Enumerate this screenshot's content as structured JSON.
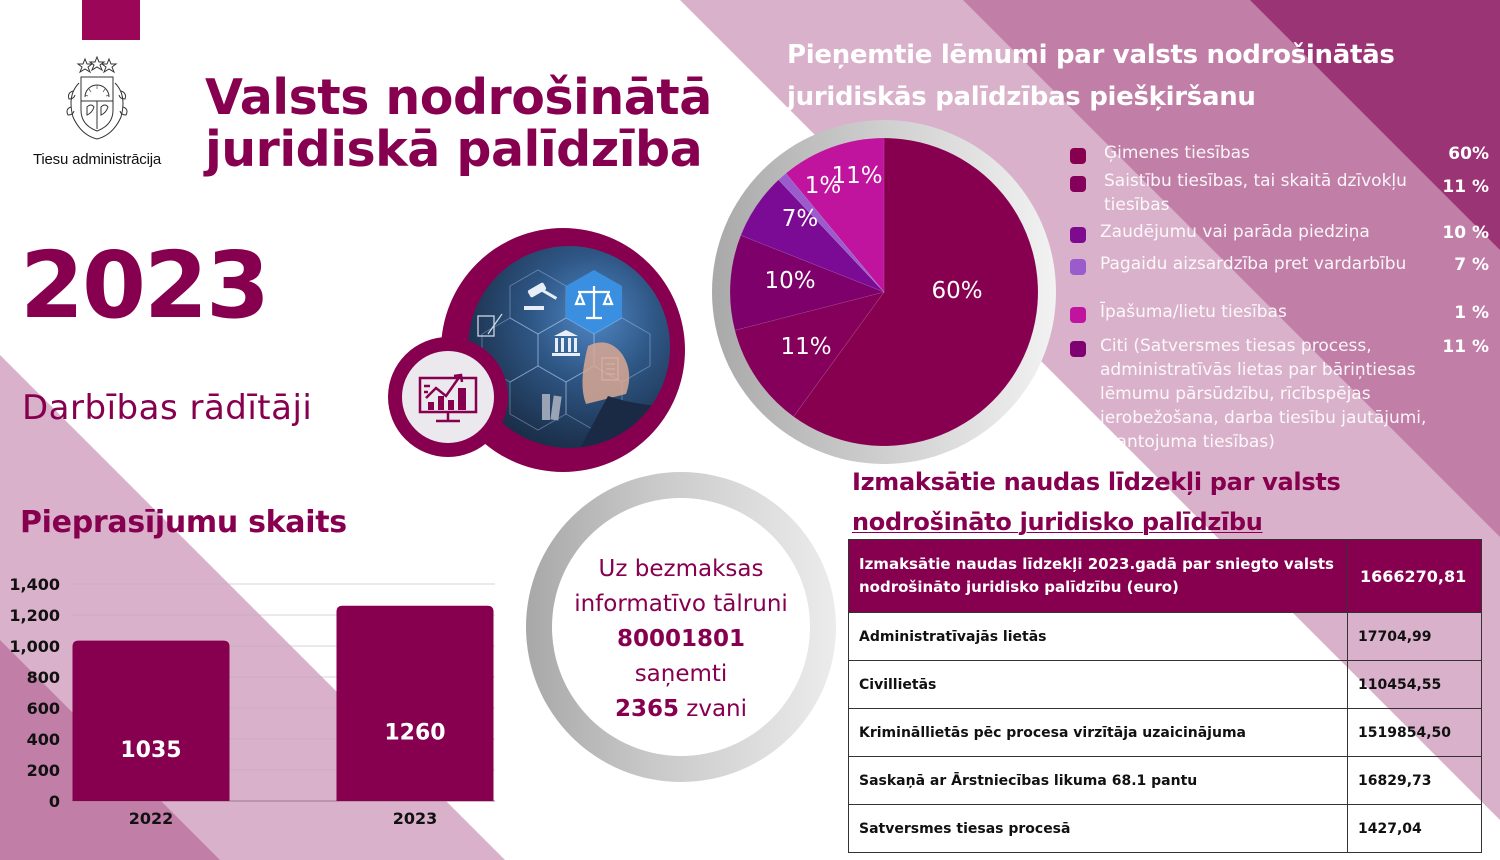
{
  "colors": {
    "brand": "#86004f",
    "band_light": "#d9b1ca",
    "band_medium": "#c17fa8",
    "band_dark": "#9b3474",
    "top_square": "#9b0658",
    "text_white": "#ffffff"
  },
  "header": {
    "organization": "Tiesu administrācija",
    "logo_icon": "latvian-coat-of-arms-icon",
    "title_line1": "Valsts nodrošinātā",
    "title_line2": "juridiskā palīdzība"
  },
  "hero": {
    "year": "2023",
    "subtitle": "Darbības rādītāji",
    "photo_icons": [
      "gavel-icon",
      "scales-of-justice-icon",
      "courthouse-icon",
      "document-signing-icon",
      "checklist-icon",
      "binders-icon"
    ],
    "badge_icon": "analytics-monitor-icon"
  },
  "decisions": {
    "title_line1": "Pieņemtie lēmumi par valsts nodrošinātās",
    "title_line2": "juridiskās palīdzības piešķiršanu",
    "legend": [
      {
        "label": "Ģimenes tiesības",
        "value": "60%",
        "color": "#86004f"
      },
      {
        "label": "Saistību tiesības, tai skaitā dzīvokļu tiesības",
        "value": "11 %",
        "color": "#84005a"
      },
      {
        "label": "Zaudējumu vai parāda piedziņa",
        "value": "10 %",
        "color": "#7d0a8f"
      },
      {
        "label": "Pagaidu aizsardzība pret vardarbību",
        "value": "7 %",
        "color": "#9a5ccd"
      },
      {
        "label": "Īpašuma/lietu tiesības",
        "value": "1 %",
        "color": "#c0149e"
      },
      {
        "label": "Citi (Satversmes tiesas process, administratīvās lietas par bāriņtiesas lēmumu pārsūdzību, rīcībspējas ierobežošana, darba tiesību jautājumi, mantojuma tiesības)",
        "value": "11 %",
        "color": "#7f0071"
      }
    ]
  },
  "requests": {
    "title": "Pieprasījumu skaits"
  },
  "phone": {
    "line1": "Uz bezmaksas",
    "line2": "informatīvo tālruni",
    "number": "80001801",
    "line4": "saņemti",
    "calls": "2365",
    "calls_suffix": " zvani"
  },
  "payments": {
    "title_line1": "Izmaksātie naudas līdzekļi par valsts",
    "title_line2": "nodrošināto juridisko palīdzību",
    "header": {
      "label": "Izmaksātie naudas līdzekļi 2023.gadā par sniegto valsts nodrošināto juridisko palīdzību (euro)",
      "value": "1666270,81"
    },
    "rows": [
      {
        "label": "Administratīvajās lietās",
        "value": "17704,99"
      },
      {
        "label": "Civillietās",
        "value": "110454,55"
      },
      {
        "label": "Krimināllietās pēc procesa virzītāja uzaicinājuma",
        "value": "1519854,50"
      },
      {
        "label": "Saskaņā ar Ārstniecības likuma 68.1 pantu",
        "value": "16829,73"
      },
      {
        "label": "Satversmes tiesas procesā",
        "value": "1427,04"
      }
    ]
  },
  "chart_data": [
    {
      "type": "pie",
      "title": "Pieņemtie lēmumi par valsts nodrošinātās juridiskās palīdzības piešķiršanu",
      "start_angle": "12 o'clock, clockwise",
      "slices": [
        {
          "label": "Ģimenes tiesības",
          "value": 60,
          "display": "60%",
          "color": "#86004f"
        },
        {
          "label": "Saistību tiesības, tai skaitā dzīvokļu tiesības",
          "value": 11,
          "display": "11%",
          "color": "#84005a"
        },
        {
          "label": "Zaudējumu vai parāda piedziņa",
          "value": 10,
          "display": "10%",
          "color": "#7e006b"
        },
        {
          "label": "Pagaidu aizsardzība pret vardarbību",
          "value": 7,
          "display": "7%",
          "color": "#7b0a95"
        },
        {
          "label": "Īpašuma/lietu tiesības",
          "value": 1,
          "display": "1%",
          "color": "#9a5ccd"
        },
        {
          "label": "Citi",
          "value": 11,
          "display": "11%",
          "color": "#c0149e"
        }
      ]
    },
    {
      "type": "bar",
      "title": "Pieprasījumu skaits",
      "categories": [
        "2022",
        "2023"
      ],
      "values": [
        1035,
        1260
      ],
      "data_labels": [
        "1035",
        "1260"
      ],
      "xlabel": "",
      "ylabel": "",
      "ylim": [
        0,
        1400
      ],
      "yticks": [
        "0",
        "200",
        "400",
        "600",
        "800",
        "1,000",
        "1,200",
        "1,400"
      ],
      "grid": true,
      "color": "#86004f"
    }
  ]
}
